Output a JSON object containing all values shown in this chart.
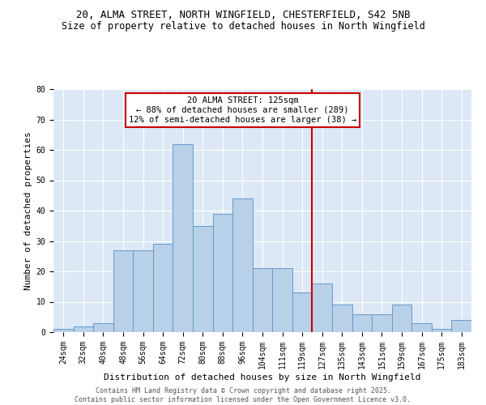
{
  "title_line1": "20, ALMA STREET, NORTH WINGFIELD, CHESTERFIELD, S42 5NB",
  "title_line2": "Size of property relative to detached houses in North Wingfield",
  "xlabel": "Distribution of detached houses by size in North Wingfield",
  "ylabel": "Number of detached properties",
  "bar_labels": [
    "24sqm",
    "32sqm",
    "40sqm",
    "48sqm",
    "56sqm",
    "64sqm",
    "72sqm",
    "80sqm",
    "88sqm",
    "96sqm",
    "104sqm",
    "111sqm",
    "119sqm",
    "127sqm",
    "135sqm",
    "143sqm",
    "151sqm",
    "159sqm",
    "167sqm",
    "175sqm",
    "183sqm"
  ],
  "bar_values": [
    1,
    2,
    3,
    27,
    27,
    29,
    62,
    35,
    39,
    44,
    21,
    21,
    13,
    16,
    9,
    6,
    6,
    9,
    3,
    1,
    4
  ],
  "bar_color": "#b8d0e8",
  "bar_edge_color": "#6699cc",
  "property_label": "20 ALMA STREET: 125sqm",
  "annotation_line1": "← 88% of detached houses are smaller (289)",
  "annotation_line2": "12% of semi-detached houses are larger (38) →",
  "vline_color": "#cc0000",
  "annotation_box_color": "#cc0000",
  "ylim": [
    0,
    80
  ],
  "yticks": [
    0,
    10,
    20,
    30,
    40,
    50,
    60,
    70,
    80
  ],
  "background_color": "#dce8f5",
  "footer_line1": "Contains HM Land Registry data © Crown copyright and database right 2025.",
  "footer_line2": "Contains public sector information licensed under the Open Government Licence v3.0.",
  "title_fontsize": 9,
  "subtitle_fontsize": 8.5,
  "axis_label_fontsize": 8,
  "tick_fontsize": 7,
  "footer_fontsize": 6,
  "annotation_fontsize": 7.5
}
